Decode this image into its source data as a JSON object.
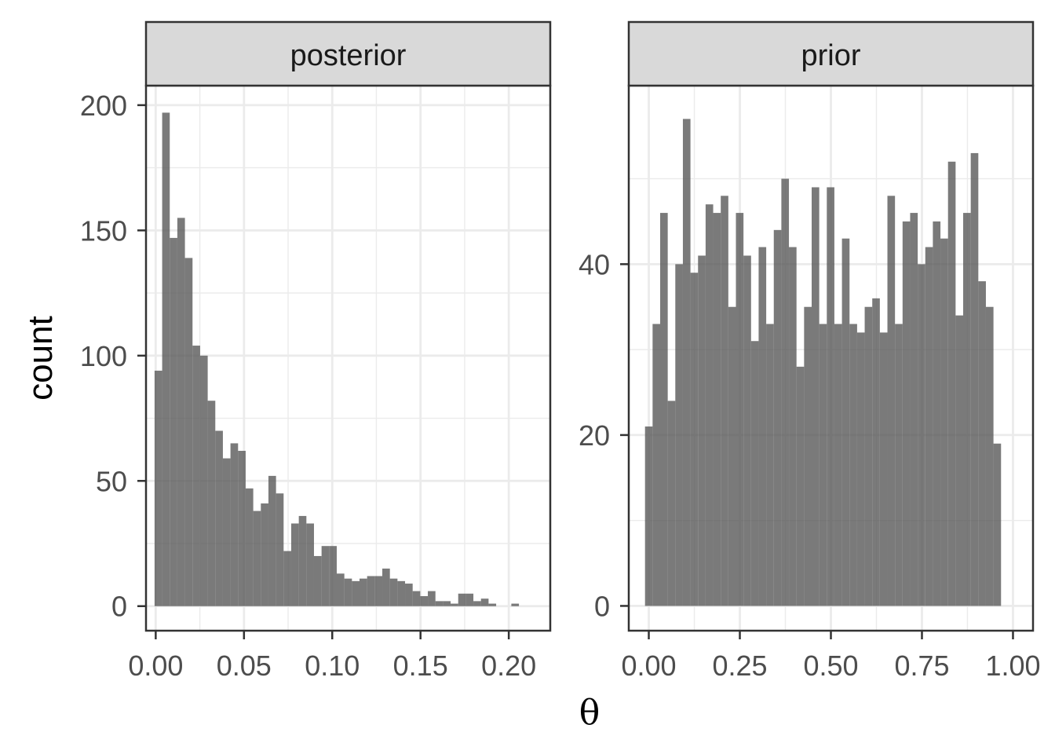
{
  "chart_data": {
    "type": "bar",
    "subtype": "faceted-histogram",
    "xlabel": "θ",
    "ylabel": "count",
    "bar_color": "#595959",
    "bar_opacity": 0.8,
    "strip_fill": "#d9d9d9",
    "grid": true,
    "facets": [
      {
        "name": "posterior",
        "xlim": [
          -0.0055,
          0.2235
        ],
        "ylim": [
          -9.8,
          207.8
        ],
        "xticks": [
          0.0,
          0.05,
          0.1,
          0.15,
          0.2
        ],
        "xtick_labels": [
          "0.00",
          "0.05",
          "0.10",
          "0.15",
          "0.20"
        ],
        "yticks": [
          0,
          50,
          100,
          150,
          200
        ],
        "ytick_labels": [
          "0",
          "50",
          "100",
          "150",
          "200"
        ],
        "bin_start": -0.00065,
        "bin_width": 0.0043,
        "counts": [
          94,
          197,
          147,
          155,
          139,
          104,
          100,
          82,
          70,
          59,
          65,
          62,
          47,
          38,
          41,
          52,
          45,
          22,
          33,
          36,
          33,
          20,
          24,
          24,
          13,
          11,
          10,
          11,
          12,
          12,
          15,
          11,
          10,
          9,
          6,
          4,
          6,
          2,
          2,
          1,
          5,
          5,
          2,
          3,
          1,
          0,
          0,
          1
        ]
      },
      {
        "name": "prior",
        "xlim": [
          -0.055,
          1.055
        ],
        "ylim": [
          -2.9,
          60.9
        ],
        "xticks": [
          0.0,
          0.25,
          0.5,
          0.75,
          1.0
        ],
        "xtick_labels": [
          "0.00",
          "0.25",
          "0.50",
          "0.75",
          "1.00"
        ],
        "yticks": [
          0,
          20,
          40
        ],
        "ytick_labels": [
          "0",
          "20",
          "40"
        ],
        "bin_start": -0.0104,
        "bin_width": 0.0208,
        "counts": [
          21,
          33,
          46,
          24,
          40,
          57,
          39,
          41,
          47,
          46,
          48,
          35,
          46,
          41,
          31,
          42,
          33,
          44,
          50,
          42,
          28,
          35,
          49,
          33,
          49,
          33,
          43,
          33,
          32,
          35,
          36,
          32,
          48,
          33,
          45,
          46,
          40,
          42,
          45,
          43,
          52,
          34,
          46,
          53,
          38,
          35,
          19
        ]
      }
    ]
  }
}
